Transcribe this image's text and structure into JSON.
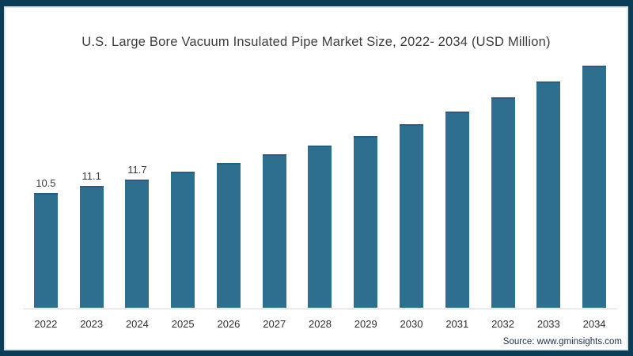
{
  "page": {
    "border_color": "#0c3d57",
    "inner_line_color": "#d9e6ee",
    "background": "#ffffff"
  },
  "chart_data": {
    "type": "bar",
    "title": "U.S. Large Bore Vacuum Insulated Pipe Market Size, 2022- 2034 (USD Million)",
    "categories": [
      "2022",
      "2023",
      "2024",
      "2025",
      "2026",
      "2027",
      "2028",
      "2029",
      "2030",
      "2031",
      "2032",
      "2033",
      "2034"
    ],
    "values": [
      10.5,
      11.1,
      11.7,
      12.4,
      13.2,
      14.0,
      14.8,
      15.7,
      16.8,
      17.9,
      19.2,
      20.7,
      22.1
    ],
    "value_labels_shown": [
      "10.5",
      "11.1",
      "11.7",
      "",
      "",
      "",
      "",
      "",
      "",
      "",
      "",
      "",
      ""
    ],
    "bar_color": "#2e6e8e",
    "bar_top_edge_color": "#24607d",
    "axis_line_color": "#d9d9d9",
    "xlabel": "",
    "ylabel": "",
    "ylim": [
      0,
      24
    ],
    "grid": false,
    "legend": false
  },
  "footer": {
    "source_label": "Source: www.gminsights.com"
  }
}
